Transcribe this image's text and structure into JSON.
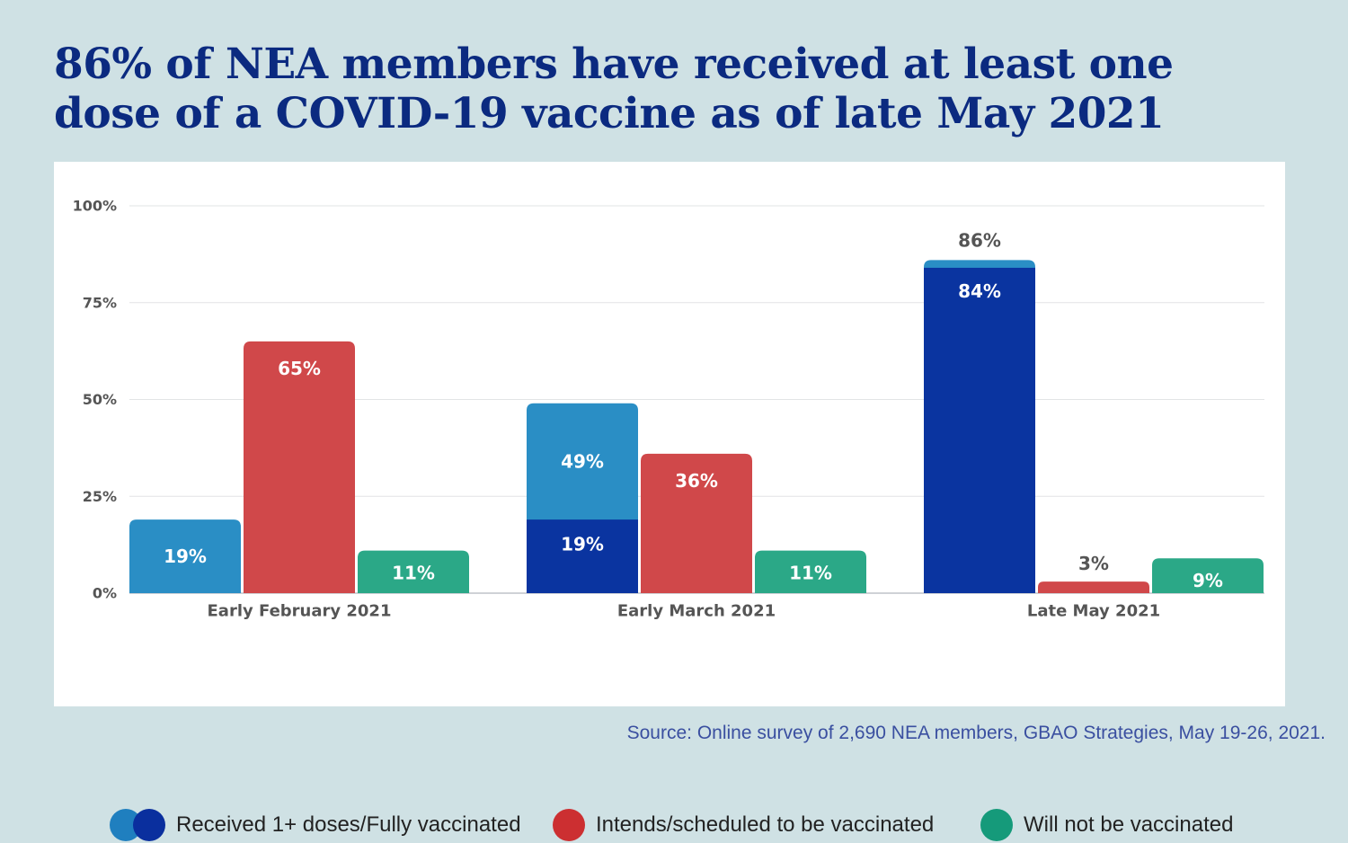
{
  "title_lines": [
    "86% of NEA members have received at least one",
    "dose of a COVID-19 vaccine as of late May 2021"
  ],
  "colors": {
    "received": "#2a8ec5",
    "fully": "#0a34a0",
    "intends": "#d0484a",
    "will_not": "#2ba887",
    "legend_received": "#1f7fbf",
    "legend_fully": "#0a2f9e",
    "legend_intends": "#cc2f31",
    "legend_will_not": "#159a7a"
  },
  "legend": {
    "received": "Received 1+ doses/Fully vaccinated",
    "intends": "Intends/scheduled to be vaccinated",
    "will_not": "Will not be vaccinated"
  },
  "source": "Source: Online survey of 2,690 NEA members, GBAO Strategies, May 19-26, 2021.",
  "chart_data": {
    "type": "bar",
    "title": "86% of NEA members have received at least one dose of a COVID-19 vaccine as of late May 2021",
    "categories": [
      "Early February 2021",
      "Early March 2021",
      "Late May 2021"
    ],
    "ylim": [
      0,
      100
    ],
    "yticks": [
      0,
      25,
      50,
      75,
      100
    ],
    "ytick_labels": [
      "0%",
      "25%",
      "50%",
      "75%",
      "100%"
    ],
    "grid": true,
    "series": [
      {
        "name": "Received 1+ doses/Fully vaccinated",
        "stacked": true,
        "received_total": [
          19,
          49,
          86
        ],
        "fully_vaccinated": [
          0,
          19,
          84
        ],
        "labels_total": [
          "19%",
          "49%",
          "86%"
        ],
        "labels_fully": [
          "",
          "19%",
          "84%"
        ]
      },
      {
        "name": "Intends/scheduled to be vaccinated",
        "values": [
          65,
          36,
          3
        ],
        "labels": [
          "65%",
          "36%",
          "3%"
        ]
      },
      {
        "name": "Will not be vaccinated",
        "values": [
          11,
          11,
          9
        ],
        "labels": [
          "11%",
          "11%",
          "9%"
        ]
      }
    ]
  }
}
